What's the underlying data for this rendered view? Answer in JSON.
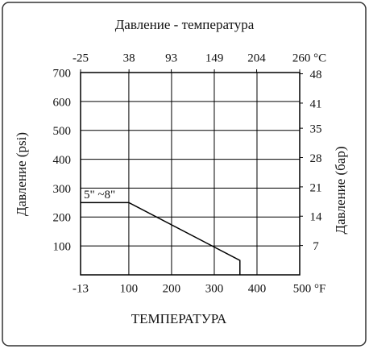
{
  "chart_data": {
    "type": "line",
    "title": "Давление - температура",
    "x_label": "ТЕМПЕРАТУРА",
    "y_label": "Давление (psi)",
    "y2_label": "Давление (бар)",
    "annotation": "5\" ~8\"",
    "x": [
      -13,
      100,
      360,
      360
    ],
    "values": [
      250,
      250,
      50,
      0
    ],
    "color": "#000000",
    "xlim": [
      -13,
      500
    ],
    "xticks": [
      -13,
      100,
      200,
      300,
      400,
      {
        "value": 500,
        "label": "500 °F"
      }
    ],
    "x2lim": [
      -25,
      260
    ],
    "x2ticks": [
      -25,
      38,
      93,
      149,
      204,
      {
        "value": 260,
        "label": "260 °C"
      }
    ],
    "ylim": [
      0,
      700
    ],
    "yticks": [
      100,
      200,
      300,
      400,
      500,
      600,
      700
    ],
    "y2lim": [
      0,
      48.3
    ],
    "y2ticks": [
      7,
      14,
      21,
      28,
      35,
      41,
      48
    ],
    "grid": true
  }
}
